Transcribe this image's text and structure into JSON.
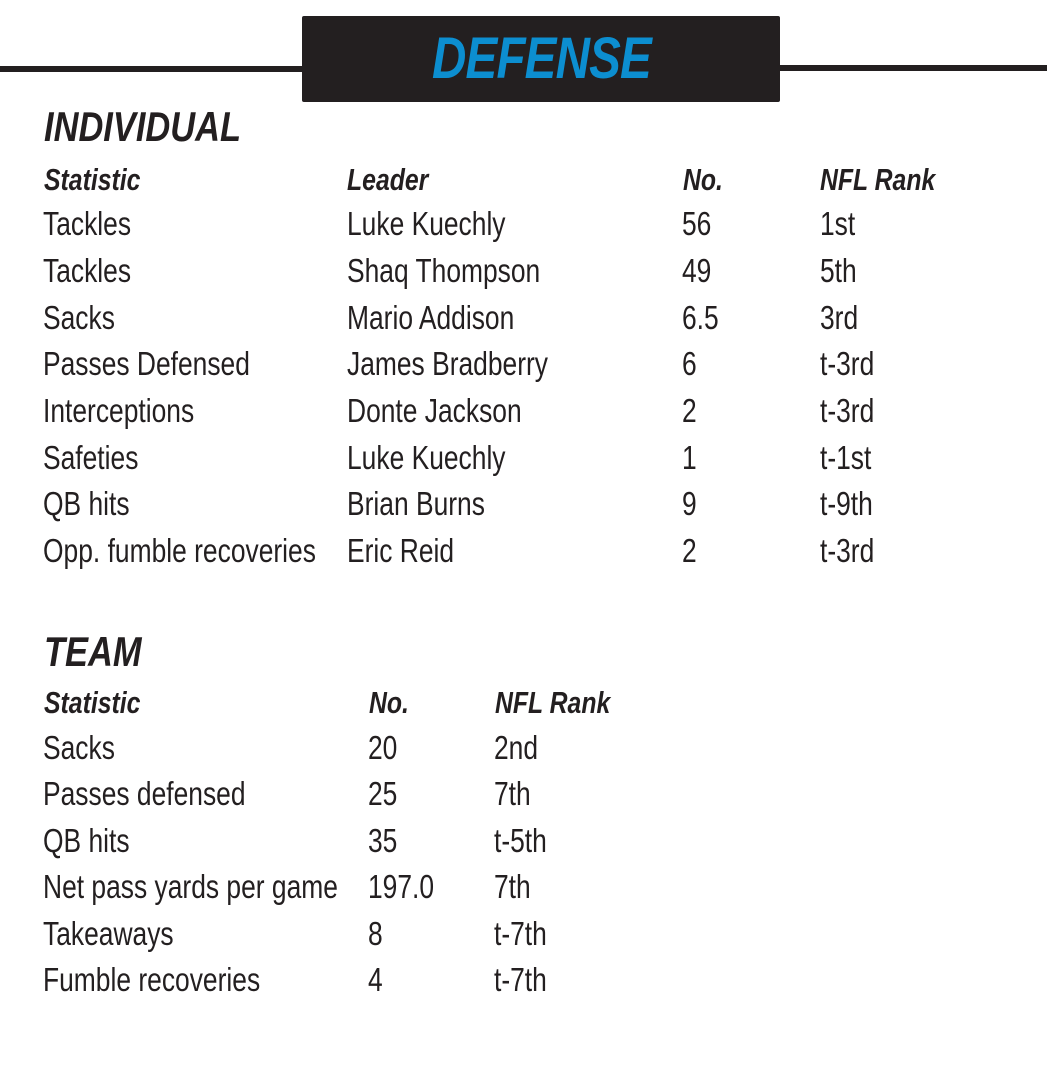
{
  "banner": {
    "title": "DEFENSE"
  },
  "individual": {
    "title": "INDIVIDUAL",
    "headers": [
      "Statistic",
      "Leader",
      "No.",
      "NFL Rank"
    ],
    "rows": [
      [
        "Tackles",
        "Luke Kuechly",
        "56",
        "1st"
      ],
      [
        "Tackles",
        "Shaq Thompson",
        "49",
        "5th"
      ],
      [
        "Sacks",
        "Mario Addison",
        "6.5",
        "3rd"
      ],
      [
        "Passes Defensed",
        "James Bradberry",
        "6",
        "t-3rd"
      ],
      [
        "Interceptions",
        "Donte Jackson",
        "2",
        "t-3rd"
      ],
      [
        "Safeties",
        "Luke Kuechly",
        "1",
        "t-1st"
      ],
      [
        "QB hits",
        "Brian Burns",
        "9",
        "t-9th"
      ],
      [
        "Opp. fumble recoveries",
        "Eric Reid",
        "2",
        "t-3rd"
      ]
    ]
  },
  "team": {
    "title": "TEAM",
    "headers": [
      "Statistic",
      "No.",
      "NFL Rank"
    ],
    "rows": [
      [
        "Sacks",
        "20",
        "2nd"
      ],
      [
        "Passes defensed",
        "25",
        "7th"
      ],
      [
        "QB hits",
        "35",
        "t-5th"
      ],
      [
        "Net pass yards per game",
        "197.0",
        "7th"
      ],
      [
        "Takeaways",
        "8",
        "t-7th"
      ],
      [
        "Fumble recoveries",
        "4",
        "t-7th"
      ]
    ]
  },
  "colors": {
    "accent": "#0c8ed0",
    "ink": "#231f20"
  }
}
